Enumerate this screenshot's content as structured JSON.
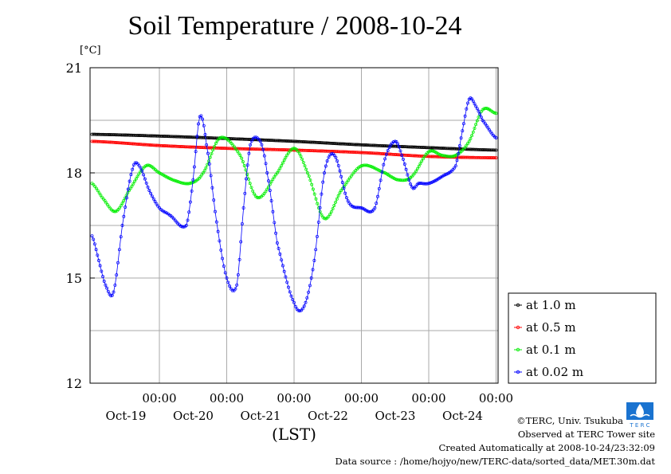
{
  "chart_data": {
    "type": "line",
    "title": "Soil Temperature / 2008-10-24",
    "ylabel": "[°C]",
    "xlabel": "(LST)",
    "ylim": [
      12,
      21
    ],
    "yticks": [
      12,
      15,
      18,
      21
    ],
    "x_unit": "day index (Oct-19 00:00 = 0)",
    "xlim": [
      -1.0,
      5.0
    ],
    "x_tick_time_label": "00:00",
    "x_tick_dates": [
      "Oct-19",
      "Oct-20",
      "Oct-21",
      "Oct-22",
      "Oct-23",
      "Oct-24"
    ],
    "grid": true,
    "legend_position": "right",
    "series": [
      {
        "name": "at 1.0 m",
        "color": "#000000",
        "x": [
          -1.0,
          0.0,
          1.0,
          2.0,
          3.0,
          4.0,
          5.0
        ],
        "y": [
          19.1,
          19.05,
          18.98,
          18.9,
          18.8,
          18.72,
          18.65
        ]
      },
      {
        "name": "at 0.5 m",
        "color": "#ff0000",
        "x": [
          -1.0,
          0.0,
          1.0,
          2.0,
          3.0,
          4.0,
          5.0
        ],
        "y": [
          18.9,
          18.78,
          18.7,
          18.65,
          18.58,
          18.47,
          18.43
        ]
      },
      {
        "name": "at 0.1 m",
        "color": "#00ee00",
        "x": [
          -1.0,
          -0.85,
          -0.65,
          -0.45,
          -0.2,
          0.0,
          0.2,
          0.45,
          0.65,
          0.9,
          1.2,
          1.45,
          1.75,
          2.0,
          2.2,
          2.45,
          2.7,
          3.0,
          3.35,
          3.55,
          3.75,
          4.0,
          4.2,
          4.4,
          4.6,
          4.8,
          5.0
        ],
        "y": [
          17.7,
          17.3,
          16.9,
          17.5,
          18.2,
          18.0,
          17.8,
          17.7,
          18.0,
          19.0,
          18.5,
          17.3,
          18.0,
          18.7,
          18.0,
          16.7,
          17.5,
          18.2,
          18.0,
          17.8,
          17.9,
          18.6,
          18.5,
          18.5,
          18.9,
          19.8,
          19.7
        ]
      },
      {
        "name": "at 0.02 m",
        "color": "#0000ff",
        "x": [
          -1.0,
          -0.9,
          -0.8,
          -0.68,
          -0.55,
          -0.4,
          -0.3,
          -0.15,
          0.0,
          0.15,
          0.4,
          0.5,
          0.6,
          0.7,
          0.85,
          1.0,
          1.15,
          1.25,
          1.35,
          1.5,
          1.6,
          1.75,
          2.0,
          2.15,
          2.3,
          2.45,
          2.6,
          2.8,
          3.0,
          3.2,
          3.35,
          3.5,
          3.6,
          3.75,
          3.85,
          4.0,
          4.2,
          4.4,
          4.5,
          4.6,
          4.7,
          4.8,
          5.0
        ],
        "y": [
          16.2,
          15.5,
          14.8,
          14.6,
          16.5,
          18.1,
          18.2,
          17.5,
          17.0,
          16.8,
          16.5,
          17.8,
          19.6,
          18.8,
          16.6,
          15.0,
          14.8,
          17.0,
          18.8,
          18.9,
          18.0,
          16.0,
          14.3,
          14.2,
          15.5,
          18.0,
          18.5,
          17.2,
          17.0,
          17.0,
          18.4,
          18.9,
          18.5,
          17.6,
          17.7,
          17.7,
          17.9,
          18.2,
          19.2,
          20.1,
          19.9,
          19.5,
          19.0
        ]
      }
    ]
  },
  "credits": {
    "copyright": "©TERC, Univ. Tsukuba",
    "observed": "Observed at TERC Tower site",
    "created": "Created Automatically at 2008-10-24/23:32:09",
    "source": "Data source : /home/hojyo/new/TERC-data/sorted_data/MET.30m.dat"
  },
  "logo": {
    "text": "T E R C",
    "color": "#1a73d0"
  }
}
